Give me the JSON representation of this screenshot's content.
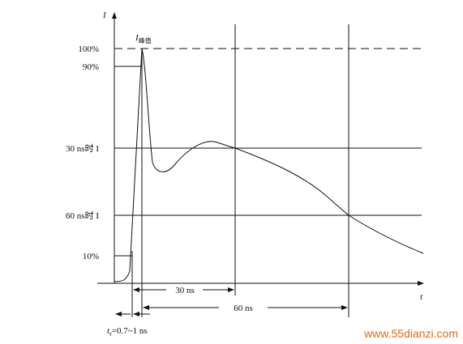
{
  "axes": {
    "y_label": "I",
    "x_label": "t"
  },
  "peak_label": {
    "main": "I",
    "sub": "峰值"
  },
  "levels": {
    "l100": "100%",
    "l90": "90%",
    "l30ns": "30 ns时 I",
    "l60ns": "60 ns时 I",
    "l10": "10%"
  },
  "intervals": {
    "t30": "30 ns",
    "t60": "60 ns"
  },
  "rise": {
    "main": "t",
    "sub": "r",
    "rest": "=0.7~1 ns"
  },
  "watermark": "www.55dianzi.com"
}
